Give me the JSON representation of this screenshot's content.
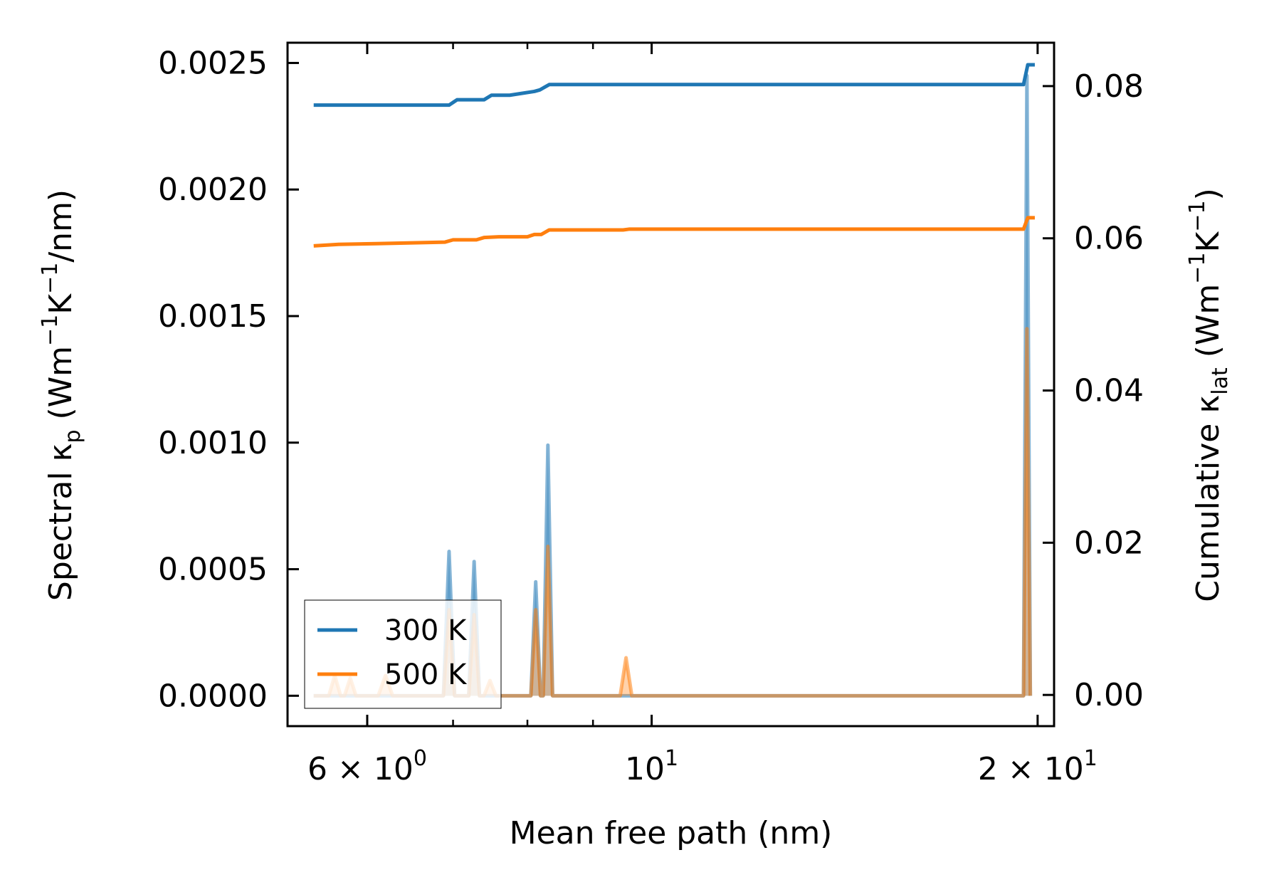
{
  "chart_data": {
    "type": "line",
    "x_scale": "log",
    "xlabel": "Mean free path (nm)",
    "ylabel_left": {
      "main": "Spectral κ",
      "sub": "p",
      "units_open": " (Wm",
      "units_sup1": "−1",
      "units_mid": "K",
      "units_sup2": "−1",
      "units_close": "/nm)"
    },
    "ylabel_right": {
      "main": "Cumulative κ",
      "sub": "lat",
      "units_open": " (Wm",
      "units_sup1": "−1",
      "units_mid": "K",
      "units_sup2": "−1",
      "units_close": ")"
    },
    "xlim": [
      5.2,
      20.6
    ],
    "ylim_left": [
      -0.00012,
      0.00258
    ],
    "ylim_right": [
      -0.0041,
      0.0857
    ],
    "x_ticks": [
      {
        "value": 6,
        "mant": "6 × 10",
        "exp": "0"
      },
      {
        "value": 10,
        "mant": "10",
        "exp": "1"
      },
      {
        "value": 20,
        "mant": "2 × 10",
        "exp": "1"
      }
    ],
    "x_minor_ticks": [
      6,
      7,
      8,
      9,
      20
    ],
    "y_left_ticks": [
      "0.0000",
      "0.0005",
      "0.0010",
      "0.0015",
      "0.0020",
      "0.0025"
    ],
    "y_left_tick_values": [
      0,
      0.0005,
      0.001,
      0.0015,
      0.002,
      0.0025
    ],
    "y_right_ticks": [
      "0.00",
      "0.02",
      "0.04",
      "0.06",
      "0.08"
    ],
    "y_right_tick_values": [
      0,
      0.02,
      0.04,
      0.06,
      0.08
    ],
    "legend_position": "lower-left",
    "series": [
      {
        "name": "300 K",
        "color": "#1f77b4",
        "cumulative": {
          "x": [
            5.45,
            6.95,
            7.05,
            7.4,
            7.5,
            7.65,
            7.75,
            8.1,
            8.18,
            8.32,
            19.5,
            19.65,
            19.9
          ],
          "y": [
            0.0775,
            0.0775,
            0.0782,
            0.0782,
            0.0788,
            0.0788,
            0.0788,
            0.0793,
            0.0795,
            0.0802,
            0.0802,
            0.0828,
            0.0828
          ]
        },
        "spectral": {
          "x": [
            5.45,
            6.88,
            6.95,
            7.02,
            7.2,
            7.27,
            7.34,
            8.05,
            8.12,
            8.19,
            8.23,
            8.3,
            8.37,
            19.5,
            19.62,
            19.74
          ],
          "y": [
            0,
            0,
            0.00057,
            0,
            0,
            0.00053,
            0,
            0,
            0.00045,
            0,
            0,
            0.00099,
            0,
            0,
            0.00245,
            0
          ]
        }
      },
      {
        "name": "500 K",
        "color": "#ff7f0e",
        "cumulative": {
          "x": [
            5.45,
            5.7,
            6.1,
            6.9,
            7.0,
            7.3,
            7.4,
            7.6,
            8.0,
            8.1,
            8.2,
            8.32,
            9.5,
            9.6,
            19.5,
            19.65,
            19.9
          ],
          "y": [
            0.059,
            0.0592,
            0.0593,
            0.0595,
            0.0598,
            0.0598,
            0.0601,
            0.0602,
            0.0602,
            0.0605,
            0.0605,
            0.0611,
            0.0611,
            0.0612,
            0.0612,
            0.0627,
            0.0627
          ]
        },
        "spectral": {
          "x": [
            5.45,
            5.6,
            5.66,
            5.72,
            5.76,
            5.82,
            5.88,
            6.12,
            6.2,
            6.28,
            6.88,
            6.95,
            7.02,
            7.2,
            7.27,
            7.34,
            7.4,
            7.48,
            7.56,
            8.05,
            8.12,
            8.19,
            8.23,
            8.3,
            8.37,
            9.45,
            9.55,
            9.65,
            19.5,
            19.62,
            19.74
          ],
          "y": [
            0,
            0,
            8e-05,
            0,
            0,
            7e-05,
            0,
            0,
            8e-05,
            0,
            0,
            0.00034,
            0,
            0,
            0.00032,
            0,
            0,
            6e-05,
            0,
            0,
            0.00034,
            0,
            0,
            0.00059,
            0,
            0,
            0.00015,
            0,
            0,
            0.00145,
            0
          ]
        }
      }
    ]
  }
}
